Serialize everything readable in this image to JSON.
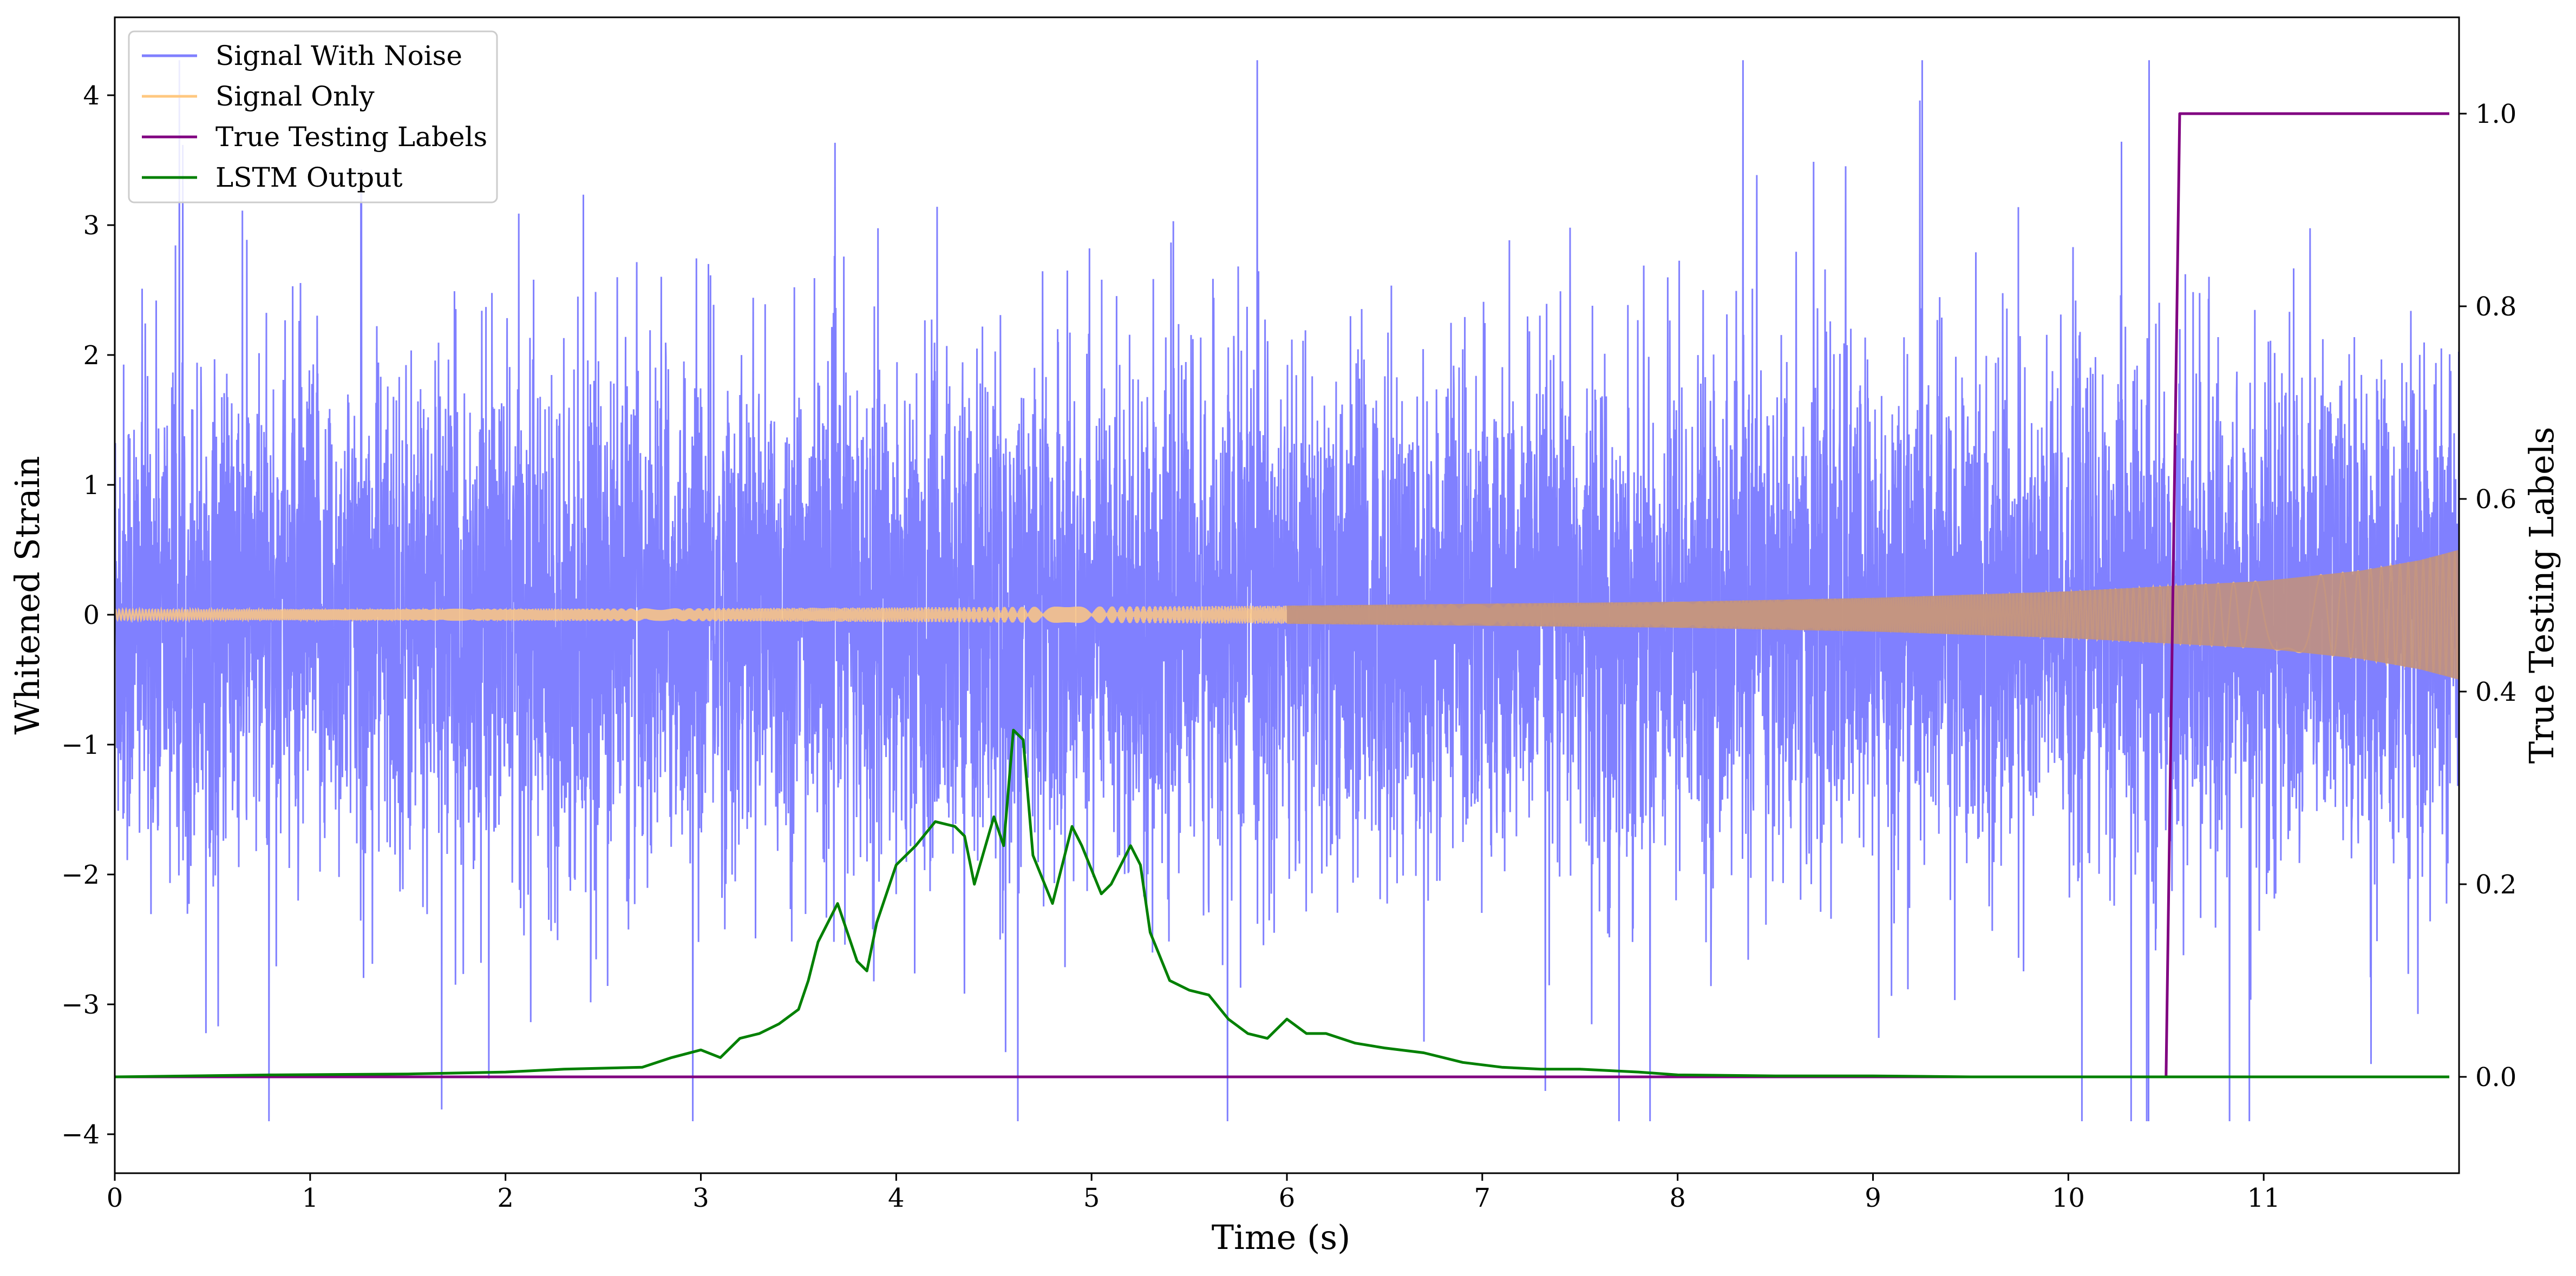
{
  "chart_data": {
    "type": "line",
    "title": "",
    "xlabel": "Time (s)",
    "ylabel": "Whitened Strain",
    "y2label": "True Testing Labels",
    "xlim": [
      0,
      12
    ],
    "ylim": [
      -4.3,
      4.6
    ],
    "y2lim": [
      -0.1,
      1.1
    ],
    "x_ticks": [
      0,
      1,
      2,
      3,
      4,
      5,
      6,
      7,
      8,
      9,
      10,
      11
    ],
    "x_tick_labels": [
      "0",
      "1",
      "2",
      "3",
      "4",
      "5",
      "6",
      "7",
      "8",
      "9",
      "10",
      "11"
    ],
    "y_ticks": [
      -4,
      -3,
      -2,
      -1,
      0,
      1,
      2,
      3,
      4
    ],
    "y_tick_labels": [
      "−4",
      "−3",
      "−2",
      "−1",
      "0",
      "1",
      "2",
      "3",
      "4"
    ],
    "y2_ticks": [
      0.0,
      0.2,
      0.4,
      0.6,
      0.8,
      1.0
    ],
    "y2_tick_labels": [
      "0.0",
      "0.2",
      "0.4",
      "0.6",
      "0.8",
      "1.0"
    ],
    "grid": false,
    "legend_position": "top-left",
    "series": [
      {
        "name": "Signal With Noise",
        "axis": "left",
        "color": "#8080ff",
        "style": "dense noise, typical amplitude about ±1.3, extreme peaks about 4.3 and -3.9",
        "envelope_typical": 1.3,
        "max_peak": 4.27,
        "min_peak": -3.9
      },
      {
        "name": "Signal Only",
        "axis": "left",
        "color": "#ffc880",
        "style": "chirp, amplitude grows toward the end",
        "amplitude_points": [
          [
            0,
            0.04
          ],
          [
            3,
            0.05
          ],
          [
            6,
            0.07
          ],
          [
            8,
            0.1
          ],
          [
            9,
            0.13
          ],
          [
            10,
            0.18
          ],
          [
            11,
            0.26
          ],
          [
            11.5,
            0.34
          ],
          [
            11.8,
            0.42
          ],
          [
            12,
            0.5
          ]
        ]
      },
      {
        "name": "True Testing Labels",
        "axis": "right",
        "color": "#800080",
        "x": [
          0,
          10.5,
          10.57,
          11.95
        ],
        "y": [
          0,
          0,
          1,
          1
        ]
      },
      {
        "name": "LSTM Output",
        "axis": "right",
        "color": "#008000",
        "x": [
          0,
          0.8,
          1.5,
          2.0,
          2.3,
          2.7,
          2.85,
          3.0,
          3.1,
          3.2,
          3.3,
          3.4,
          3.5,
          3.55,
          3.6,
          3.7,
          3.8,
          3.85,
          3.9,
          4.0,
          4.1,
          4.2,
          4.3,
          4.35,
          4.4,
          4.5,
          4.55,
          4.6,
          4.65,
          4.7,
          4.8,
          4.9,
          4.95,
          5.05,
          5.1,
          5.2,
          5.25,
          5.3,
          5.4,
          5.5,
          5.6,
          5.7,
          5.8,
          5.9,
          6.0,
          6.1,
          6.2,
          6.35,
          6.5,
          6.7,
          6.9,
          7.1,
          7.3,
          7.5,
          7.8,
          8.0,
          8.5,
          9.0,
          9.5,
          10.0,
          11.95
        ],
        "y": [
          0.0,
          0.002,
          0.003,
          0.005,
          0.008,
          0.01,
          0.02,
          0.028,
          0.02,
          0.04,
          0.045,
          0.055,
          0.07,
          0.1,
          0.14,
          0.18,
          0.12,
          0.11,
          0.16,
          0.22,
          0.24,
          0.265,
          0.26,
          0.25,
          0.2,
          0.27,
          0.24,
          0.36,
          0.35,
          0.23,
          0.18,
          0.26,
          0.24,
          0.19,
          0.2,
          0.24,
          0.22,
          0.15,
          0.1,
          0.09,
          0.085,
          0.06,
          0.045,
          0.04,
          0.06,
          0.045,
          0.045,
          0.035,
          0.03,
          0.025,
          0.015,
          0.01,
          0.008,
          0.008,
          0.005,
          0.002,
          0.001,
          0.001,
          0.0,
          0.0,
          0.0
        ]
      }
    ]
  }
}
